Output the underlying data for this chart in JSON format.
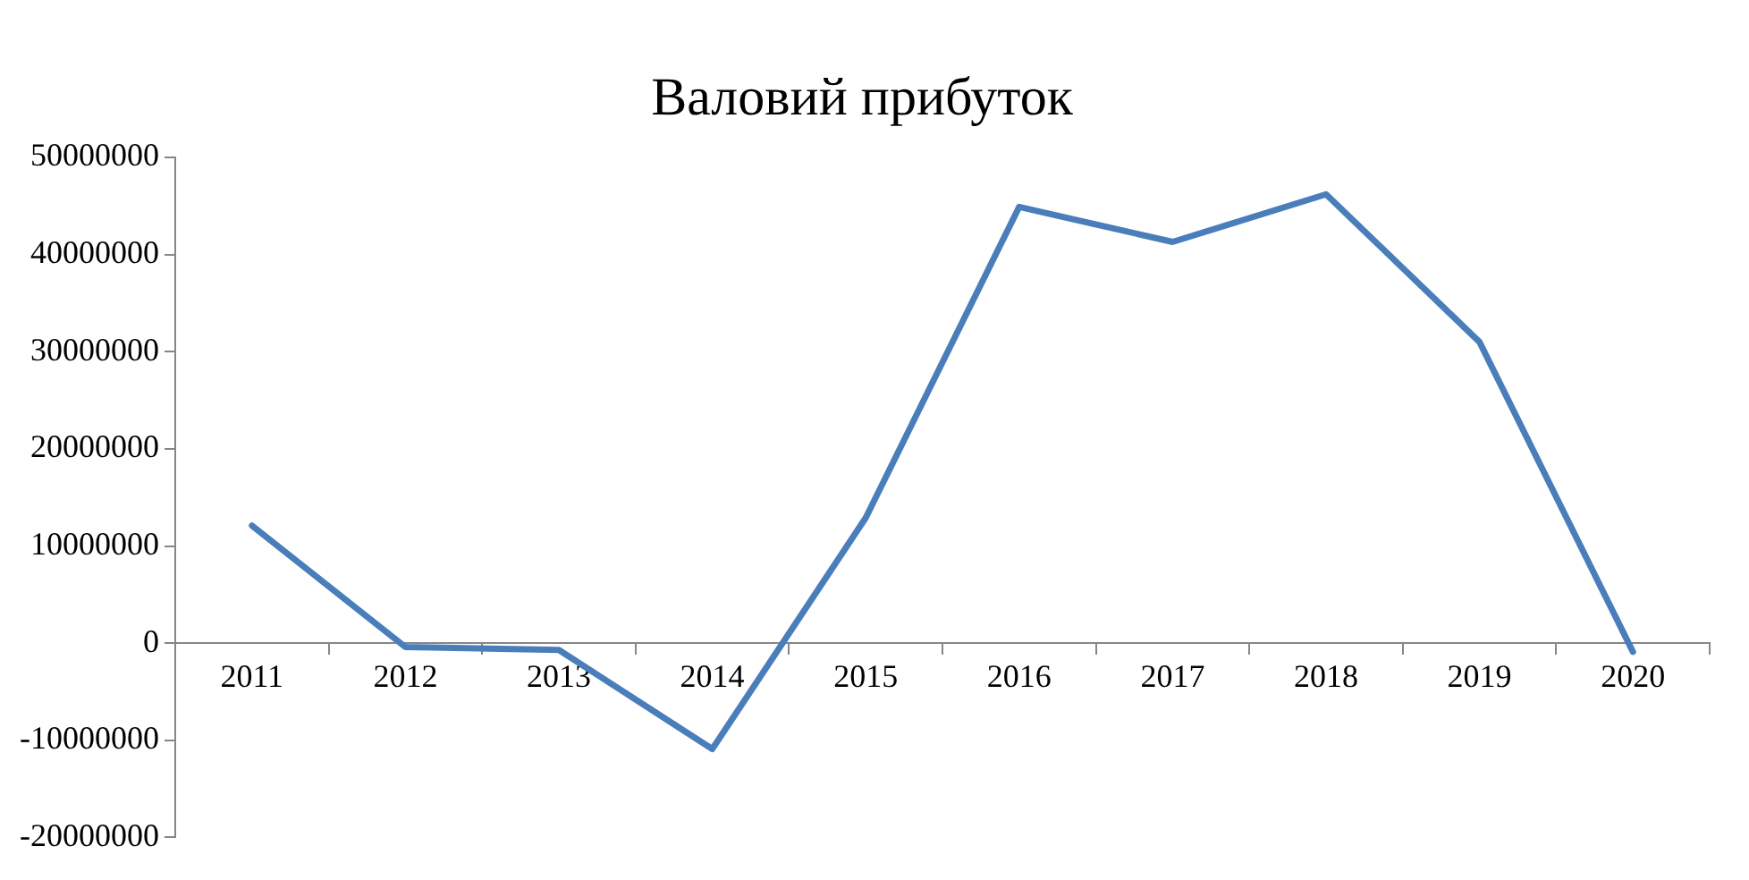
{
  "chart_data": {
    "type": "line",
    "title": "Валовий прибуток",
    "categories": [
      "2011",
      "2012",
      "2013",
      "2014",
      "2015",
      "2016",
      "2017",
      "2018",
      "2019",
      "2020"
    ],
    "series": [
      {
        "color": "#4a7ebb",
        "values": [
          12100000,
          -400000,
          -700000,
          -10900000,
          12900000,
          44900000,
          41300000,
          46200000,
          31000000,
          -900000
        ]
      }
    ],
    "ylim": [
      -20000000,
      50000000
    ],
    "yticks": [
      -20000000,
      -10000000,
      0,
      10000000,
      20000000,
      30000000,
      40000000,
      50000000
    ],
    "grid": false,
    "legend": false,
    "marker": "none",
    "line_style": "solid"
  }
}
